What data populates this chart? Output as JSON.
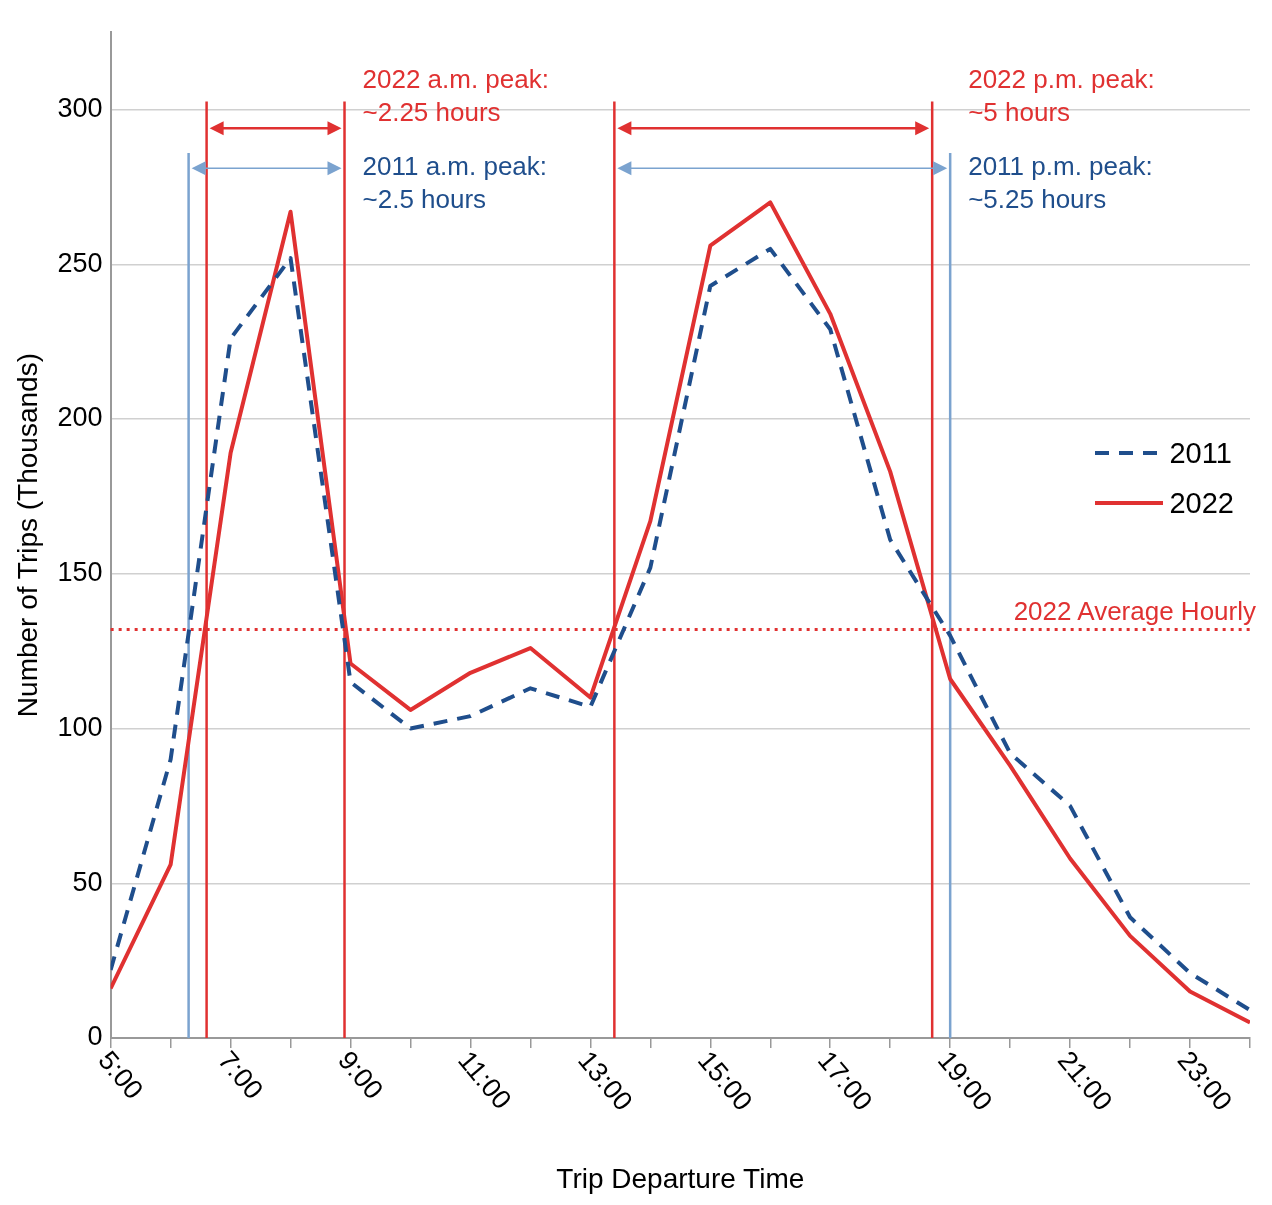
{
  "chart_data": {
    "type": "line",
    "xlabel": "Trip Departure Time",
    "ylabel": "Number of Trips (Thousands)",
    "x": [
      5,
      6,
      7,
      8,
      9,
      10,
      11,
      12,
      13,
      14,
      15,
      16,
      17,
      18,
      19,
      20,
      21,
      22,
      23,
      24
    ],
    "series": [
      {
        "name": "2011",
        "color": "#1f4e8c",
        "line_style": "dashed",
        "values": [
          22,
          90,
          226,
          252,
          115,
          100,
          104,
          113,
          107,
          152,
          243,
          255,
          229,
          161,
          130,
          92,
          75,
          39,
          21,
          9
        ]
      },
      {
        "name": "2022",
        "color": "#e03131",
        "line_style": "solid",
        "values": [
          16,
          56,
          189,
          267,
          121,
          106,
          118,
          126,
          110,
          167,
          256,
          270,
          234,
          183,
          116,
          88,
          58,
          33,
          15,
          5
        ]
      }
    ],
    "xlim": [
      5,
      24
    ],
    "xticks": [
      {
        "value": 5,
        "label": "5:00"
      },
      {
        "value": 6,
        "label": null
      },
      {
        "value": 7,
        "label": "7:00"
      },
      {
        "value": 8,
        "label": null
      },
      {
        "value": 9,
        "label": "9:00"
      },
      {
        "value": 10,
        "label": null
      },
      {
        "value": 11,
        "label": "11:00"
      },
      {
        "value": 12,
        "label": null
      },
      {
        "value": 13,
        "label": "13:00"
      },
      {
        "value": 14,
        "label": null
      },
      {
        "value": 15,
        "label": "15:00"
      },
      {
        "value": 16,
        "label": null
      },
      {
        "value": 17,
        "label": "17:00"
      },
      {
        "value": 18,
        "label": null
      },
      {
        "value": 19,
        "label": "19:00"
      },
      {
        "value": 20,
        "label": null
      },
      {
        "value": 21,
        "label": "21:00"
      },
      {
        "value": 22,
        "label": null
      },
      {
        "value": 23,
        "label": "23:00"
      },
      {
        "value": 24,
        "label": null
      }
    ],
    "ylim": [
      0,
      325
    ],
    "yticks": [
      0,
      50,
      100,
      150,
      200,
      250,
      300
    ],
    "grid": "y",
    "legend": "right",
    "marker": "none",
    "ref_lines": [
      {
        "axis": "x",
        "value": 6.6,
        "color": "#e03131",
        "line_style": "solid"
      },
      {
        "axis": "x",
        "value": 8.9,
        "color": "#e03131",
        "line_style": "solid"
      },
      {
        "axis": "x",
        "value": 13.4,
        "color": "#e03131",
        "line_style": "solid"
      },
      {
        "axis": "x",
        "value": 18.7,
        "color": "#e03131",
        "line_style": "solid"
      },
      {
        "axis": "x",
        "value": 6.3,
        "color": "#7ba3cf",
        "line_style": "solid"
      },
      {
        "axis": "x",
        "value": 19,
        "color": "#7ba3cf",
        "line_style": "solid"
      },
      {
        "axis": "y",
        "value": 132,
        "label": "2022 Average Hourly",
        "color": "#e03131",
        "line_style": "dotted"
      }
    ],
    "annotations": [
      {
        "text": "2022 a.m. peak:\n~2.25 hours",
        "x": 8.9,
        "y": 294
      },
      {
        "text": "2011 a.m. peak:\n~2.5 hours",
        "x": 8.9,
        "y": 281
      },
      {
        "text": "2022 p.m. peak:\n~5 hours",
        "x": 18.7,
        "y": 294
      },
      {
        "text": "2011 p.m. peak:\n~5.25 hours",
        "x": 19,
        "y": 281
      }
    ]
  }
}
